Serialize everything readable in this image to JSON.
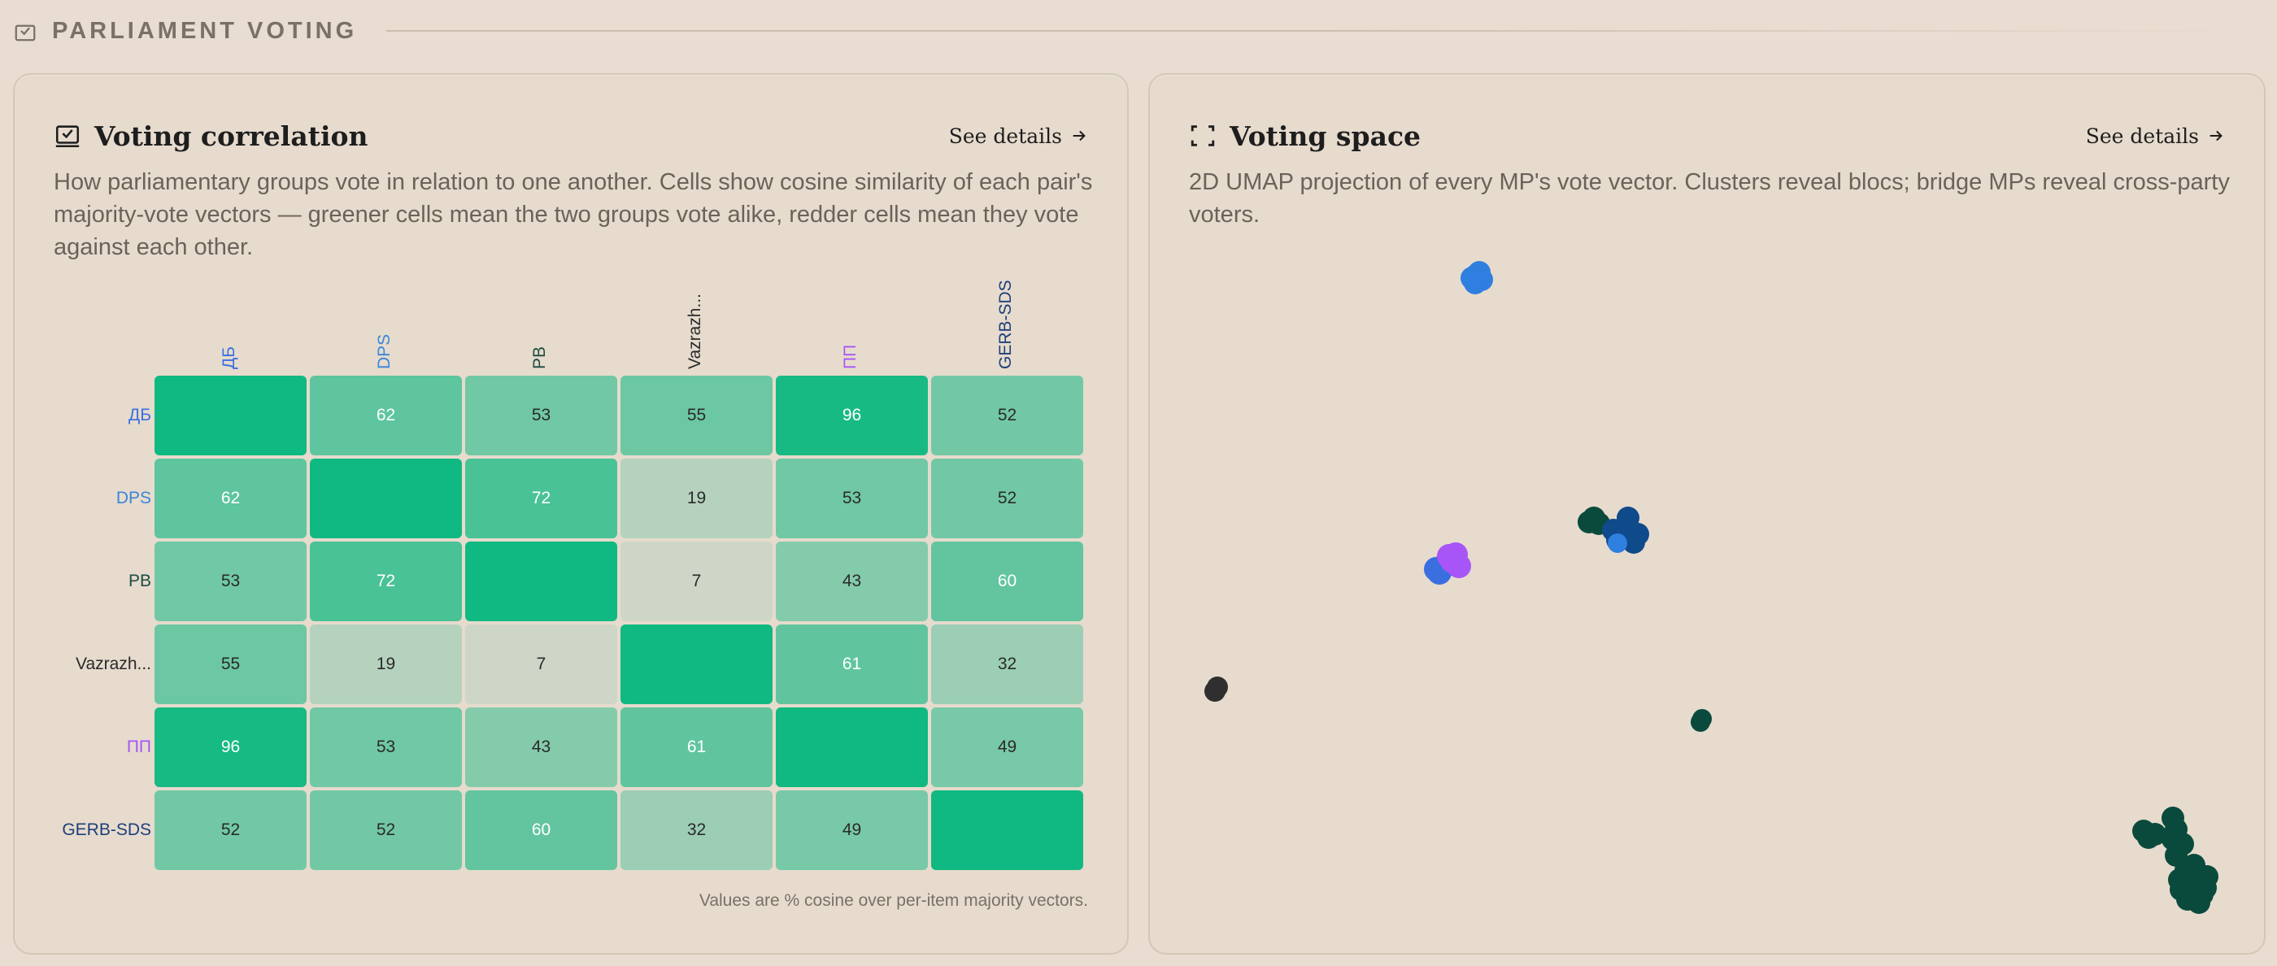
{
  "section": {
    "title": "PARLIAMENT VOTING",
    "icon": "ballot-check-icon"
  },
  "correlation": {
    "title": "Voting correlation",
    "icon": "ballot-check-icon",
    "see_details": "See details",
    "description": "How parliamentary groups vote in relation to one another. Cells show cosine similarity of each pair's majority-vote vectors — greener cells mean the two groups vote alike, redder cells mean they vote against each other.",
    "footnote": "Values are % cosine over per-item majority vectors.",
    "groups": [
      {
        "label": "ДБ",
        "color": "#3b6fe0"
      },
      {
        "label": "DPS",
        "color": "#3a86d8"
      },
      {
        "label": "PB",
        "color": "#1d4d3f"
      },
      {
        "label": "Vazrazh...",
        "color": "#2a2a2a"
      },
      {
        "label": "ПП",
        "color": "#a855f7"
      },
      {
        "label": "GERB-SDS",
        "color": "#1e3f7a"
      }
    ],
    "values": [
      [
        "",
        "62",
        "53",
        "55",
        "96",
        "52"
      ],
      [
        "62",
        "",
        "72",
        "19",
        "53",
        "52"
      ],
      [
        "53",
        "72",
        "",
        "7",
        "43",
        "60"
      ],
      [
        "55",
        "19",
        "7",
        "",
        "61",
        "32"
      ],
      [
        "96",
        "53",
        "43",
        "61",
        "",
        "49"
      ],
      [
        "52",
        "52",
        "60",
        "32",
        "49",
        ""
      ]
    ]
  },
  "space": {
    "title": "Voting space",
    "icon": "focus-frame-icon",
    "see_details": "See details",
    "description": "2D UMAP projection of every MP's vote vector. Clusters reveal blocs; bridge MPs reveal cross-party voters.",
    "colors": {
      "dps": "#2f7fe0",
      "gerb": "#0f4a8a",
      "pb": "#0a4a3d",
      "db": "#3b6fe0",
      "pp": "#a855f7",
      "vaz": "#2f2f2f"
    }
  }
}
